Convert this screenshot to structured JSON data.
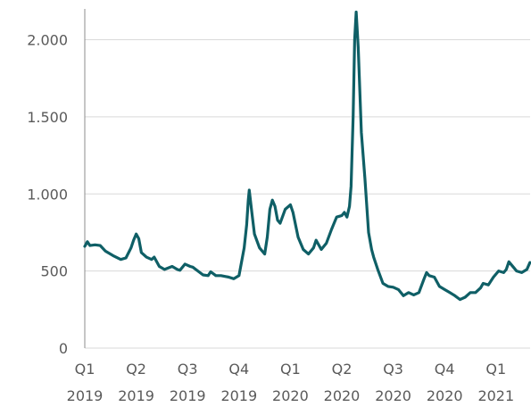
{
  "chart_data": {
    "type": "line",
    "title": "",
    "xlabel": "",
    "ylabel": "",
    "ylim": [
      0,
      2200
    ],
    "y_ticks": [
      {
        "value": 0,
        "label": "0"
      },
      {
        "value": 500,
        "label": "500"
      },
      {
        "value": 1000,
        "label": "1.000"
      },
      {
        "value": 1500,
        "label": "1.500"
      },
      {
        "value": 2000,
        "label": "2.000"
      }
    ],
    "x_ticks": [
      {
        "quarter": "Q1",
        "year": "2019"
      },
      {
        "quarter": "Q2",
        "year": "2019"
      },
      {
        "quarter": "Q3",
        "year": "2019"
      },
      {
        "quarter": "Q4",
        "year": "2019"
      },
      {
        "quarter": "Q1",
        "year": "2020"
      },
      {
        "quarter": "Q2",
        "year": "2020"
      },
      {
        "quarter": "Q3",
        "year": "2020"
      },
      {
        "quarter": "Q4",
        "year": "2020"
      },
      {
        "quarter": "Q1",
        "year": "2021"
      }
    ],
    "grid": "horizontal",
    "color": "#0f5f66",
    "series": [
      {
        "x_unit": "quarters since Q1 2019",
        "points": [
          [
            0.0,
            660
          ],
          [
            0.05,
            690
          ],
          [
            0.1,
            665
          ],
          [
            0.2,
            670
          ],
          [
            0.3,
            665
          ],
          [
            0.4,
            630
          ],
          [
            0.55,
            600
          ],
          [
            0.7,
            575
          ],
          [
            0.8,
            585
          ],
          [
            0.9,
            650
          ],
          [
            0.95,
            700
          ],
          [
            1.0,
            740
          ],
          [
            1.05,
            710
          ],
          [
            1.1,
            620
          ],
          [
            1.2,
            590
          ],
          [
            1.3,
            575
          ],
          [
            1.35,
            590
          ],
          [
            1.45,
            530
          ],
          [
            1.55,
            510
          ],
          [
            1.7,
            530
          ],
          [
            1.8,
            510
          ],
          [
            1.85,
            505
          ],
          [
            1.95,
            545
          ],
          [
            2.05,
            530
          ],
          [
            2.1,
            525
          ],
          [
            2.2,
            500
          ],
          [
            2.3,
            475
          ],
          [
            2.4,
            470
          ],
          [
            2.45,
            495
          ],
          [
            2.55,
            470
          ],
          [
            2.65,
            470
          ],
          [
            2.8,
            460
          ],
          [
            2.9,
            450
          ],
          [
            3.0,
            470
          ],
          [
            3.05,
            560
          ],
          [
            3.1,
            650
          ],
          [
            3.15,
            800
          ],
          [
            3.18,
            960
          ],
          [
            3.2,
            1025
          ],
          [
            3.25,
            880
          ],
          [
            3.3,
            740
          ],
          [
            3.4,
            650
          ],
          [
            3.5,
            610
          ],
          [
            3.55,
            720
          ],
          [
            3.6,
            900
          ],
          [
            3.65,
            960
          ],
          [
            3.7,
            920
          ],
          [
            3.75,
            830
          ],
          [
            3.8,
            810
          ],
          [
            3.9,
            900
          ],
          [
            4.0,
            930
          ],
          [
            4.05,
            880
          ],
          [
            4.15,
            720
          ],
          [
            4.25,
            640
          ],
          [
            4.35,
            610
          ],
          [
            4.45,
            650
          ],
          [
            4.5,
            700
          ],
          [
            4.6,
            640
          ],
          [
            4.7,
            680
          ],
          [
            4.8,
            770
          ],
          [
            4.9,
            850
          ],
          [
            5.0,
            860
          ],
          [
            5.05,
            880
          ],
          [
            5.1,
            850
          ],
          [
            5.15,
            920
          ],
          [
            5.18,
            1050
          ],
          [
            5.22,
            1500
          ],
          [
            5.25,
            2000
          ],
          [
            5.28,
            2180
          ],
          [
            5.32,
            1950
          ],
          [
            5.38,
            1400
          ],
          [
            5.45,
            1100
          ],
          [
            5.52,
            750
          ],
          [
            5.58,
            640
          ],
          [
            5.62,
            590
          ],
          [
            5.7,
            510
          ],
          [
            5.8,
            420
          ],
          [
            5.9,
            400
          ],
          [
            6.0,
            395
          ],
          [
            6.1,
            380
          ],
          [
            6.2,
            340
          ],
          [
            6.3,
            360
          ],
          [
            6.4,
            345
          ],
          [
            6.5,
            360
          ],
          [
            6.6,
            450
          ],
          [
            6.65,
            490
          ],
          [
            6.7,
            470
          ],
          [
            6.8,
            460
          ],
          [
            6.9,
            400
          ],
          [
            7.0,
            380
          ],
          [
            7.1,
            360
          ],
          [
            7.2,
            340
          ],
          [
            7.3,
            315
          ],
          [
            7.4,
            330
          ],
          [
            7.5,
            360
          ],
          [
            7.6,
            360
          ],
          [
            7.7,
            390
          ],
          [
            7.75,
            420
          ],
          [
            7.85,
            410
          ],
          [
            7.95,
            460
          ],
          [
            8.05,
            500
          ],
          [
            8.15,
            490
          ],
          [
            8.2,
            510
          ],
          [
            8.25,
            560
          ],
          [
            8.35,
            520
          ],
          [
            8.4,
            500
          ],
          [
            8.5,
            490
          ],
          [
            8.6,
            510
          ],
          [
            8.66,
            555
          ]
        ]
      }
    ]
  }
}
